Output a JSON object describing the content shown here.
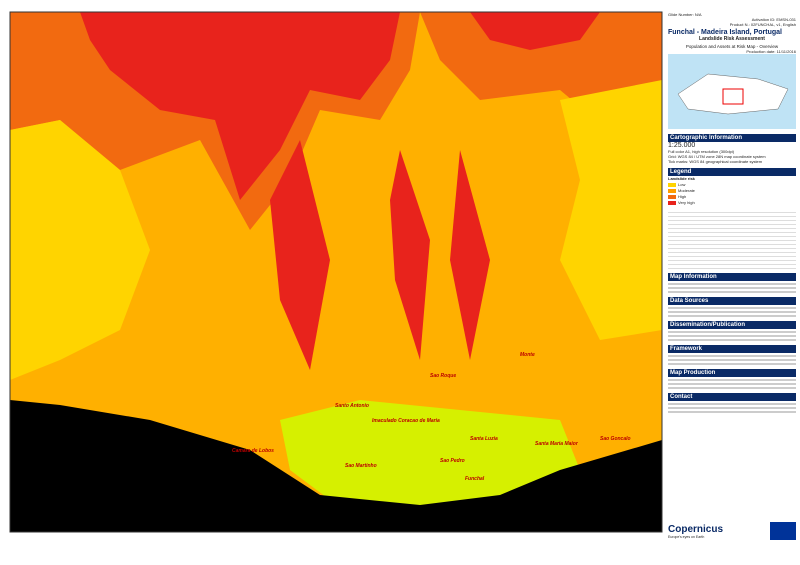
{
  "header": {
    "glide_number": "Glide Number: N/A",
    "activation": "Activation ID: EMSN-031",
    "product": "Product N.: 02FUNCHAL, v1, English",
    "title": "Funchal - Madeira Island, Portugal",
    "subtitle": "Landslide Risk Assessment",
    "map_name": "Population and Assets at Risk Map - Overview",
    "production_date": "Production date: 11/11/2016"
  },
  "cartographic": {
    "heading": "Cartographic Information",
    "scale": "1:25.000",
    "format": "Full color A1, high resolution (300dpi)",
    "grid": "Grid: WGS 84 / UTM zone 28N map coordinate system",
    "ticmarks": "Tick marks: WGS 84 geographical coordinate system"
  },
  "legend": {
    "heading": "Legend",
    "title": "Landslide risk",
    "items": [
      {
        "label": "Low",
        "color": "#ffd400"
      },
      {
        "label": "Moderate",
        "color": "#ff9f00"
      },
      {
        "label": "High",
        "color": "#f26a10"
      },
      {
        "label": "Very high",
        "color": "#e8231c"
      }
    ]
  },
  "sections": [
    "Map Information",
    "Data Sources",
    "Dissemination/Publication",
    "Framework",
    "Map Production",
    "Contact"
  ],
  "places": [
    "Sao Roque",
    "Santo Antonio",
    "Imaculado Coracao de Maria",
    "Monte",
    "Santa Luzia",
    "Sao Pedro",
    "Funchal",
    "Santa Maria Maior",
    "Sao Goncalo",
    "Camara de Lobos",
    "Sao Martinho"
  ],
  "logo": {
    "name": "Copernicus",
    "tagline": "Europe's eyes on Earth"
  }
}
